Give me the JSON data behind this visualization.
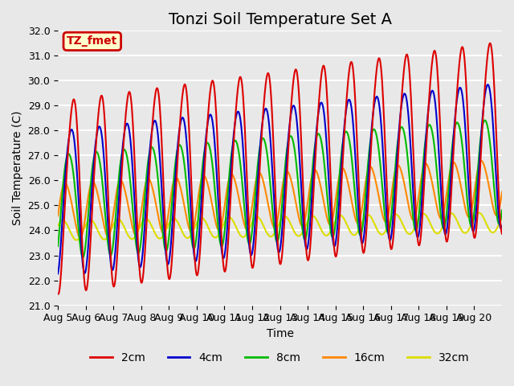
{
  "title": "Tonzi Soil Temperature Set A",
  "xlabel": "Time",
  "ylabel": "Soil Temperature (C)",
  "ylim": [
    21.0,
    32.0
  ],
  "yticks": [
    21.0,
    22.0,
    23.0,
    24.0,
    25.0,
    26.0,
    27.0,
    28.0,
    29.0,
    30.0,
    31.0,
    32.0
  ],
  "xtick_labels": [
    "Aug 5",
    "Aug 6",
    "Aug 7",
    "Aug 8",
    "Aug 9",
    "Aug 10",
    "Aug 11",
    "Aug 12",
    "Aug 13",
    "Aug 14",
    "Aug 15",
    "Aug 16",
    "Aug 17",
    "Aug 18",
    "Aug 19",
    "Aug 20"
  ],
  "series": {
    "2cm": {
      "color": "#dd0000",
      "linewidth": 1.5
    },
    "4cm": {
      "color": "#0000cc",
      "linewidth": 1.5
    },
    "8cm": {
      "color": "#00bb00",
      "linewidth": 1.5
    },
    "16cm": {
      "color": "#ff8800",
      "linewidth": 1.5
    },
    "32cm": {
      "color": "#dddd00",
      "linewidth": 1.5
    }
  },
  "annotation_label": "TZ_fmet",
  "annotation_bg": "#ffffcc",
  "annotation_border": "#cc0000",
  "background_color": "#e8e8e8",
  "grid_color": "#ffffff",
  "title_fontsize": 14,
  "axis_label_fontsize": 10,
  "tick_fontsize": 9
}
